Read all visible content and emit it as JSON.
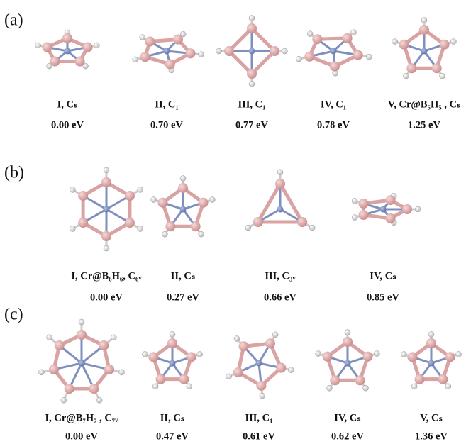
{
  "panels": [
    {
      "label": "(a)",
      "structures": [
        {
          "label": "I, Cₛ",
          "energy": "0.00 eV"
        },
        {
          "label": "II, C₁",
          "energy": "0.70 eV"
        },
        {
          "label": "III, C₁",
          "energy": "0.77 eV"
        },
        {
          "label": "IV, C₁",
          "energy": "0.78 eV"
        },
        {
          "label": "V, Cr@B₅H₅ , Cₛ",
          "energy": "1.25 eV"
        }
      ]
    },
    {
      "label": "(b)",
      "structures": [
        {
          "label": "I, Cr@B₆H₆, C₆ᵥ",
          "energy": "0.00 eV"
        },
        {
          "label": "II, Cₛ",
          "energy": "0.27 eV"
        },
        {
          "label": "III, C₃ᵥ",
          "energy": "0.66 eV"
        },
        {
          "label": "IV, Cₛ",
          "energy": "0.85 eV"
        }
      ]
    },
    {
      "label": "(c)",
      "structures": [
        {
          "label": "I, Cr@B₇H₇ , C₇ᵥ",
          "energy": "0.00 eV"
        },
        {
          "label": "II, Cₛ",
          "energy": "0.47 eV"
        },
        {
          "label": "III, C₁",
          "energy": "0.61 eV"
        },
        {
          "label": "IV, Cₛ",
          "energy": "0.62 eV"
        },
        {
          "label": "V, Cₛ",
          "energy": "1.36 eV"
        }
      ]
    }
  ]
}
